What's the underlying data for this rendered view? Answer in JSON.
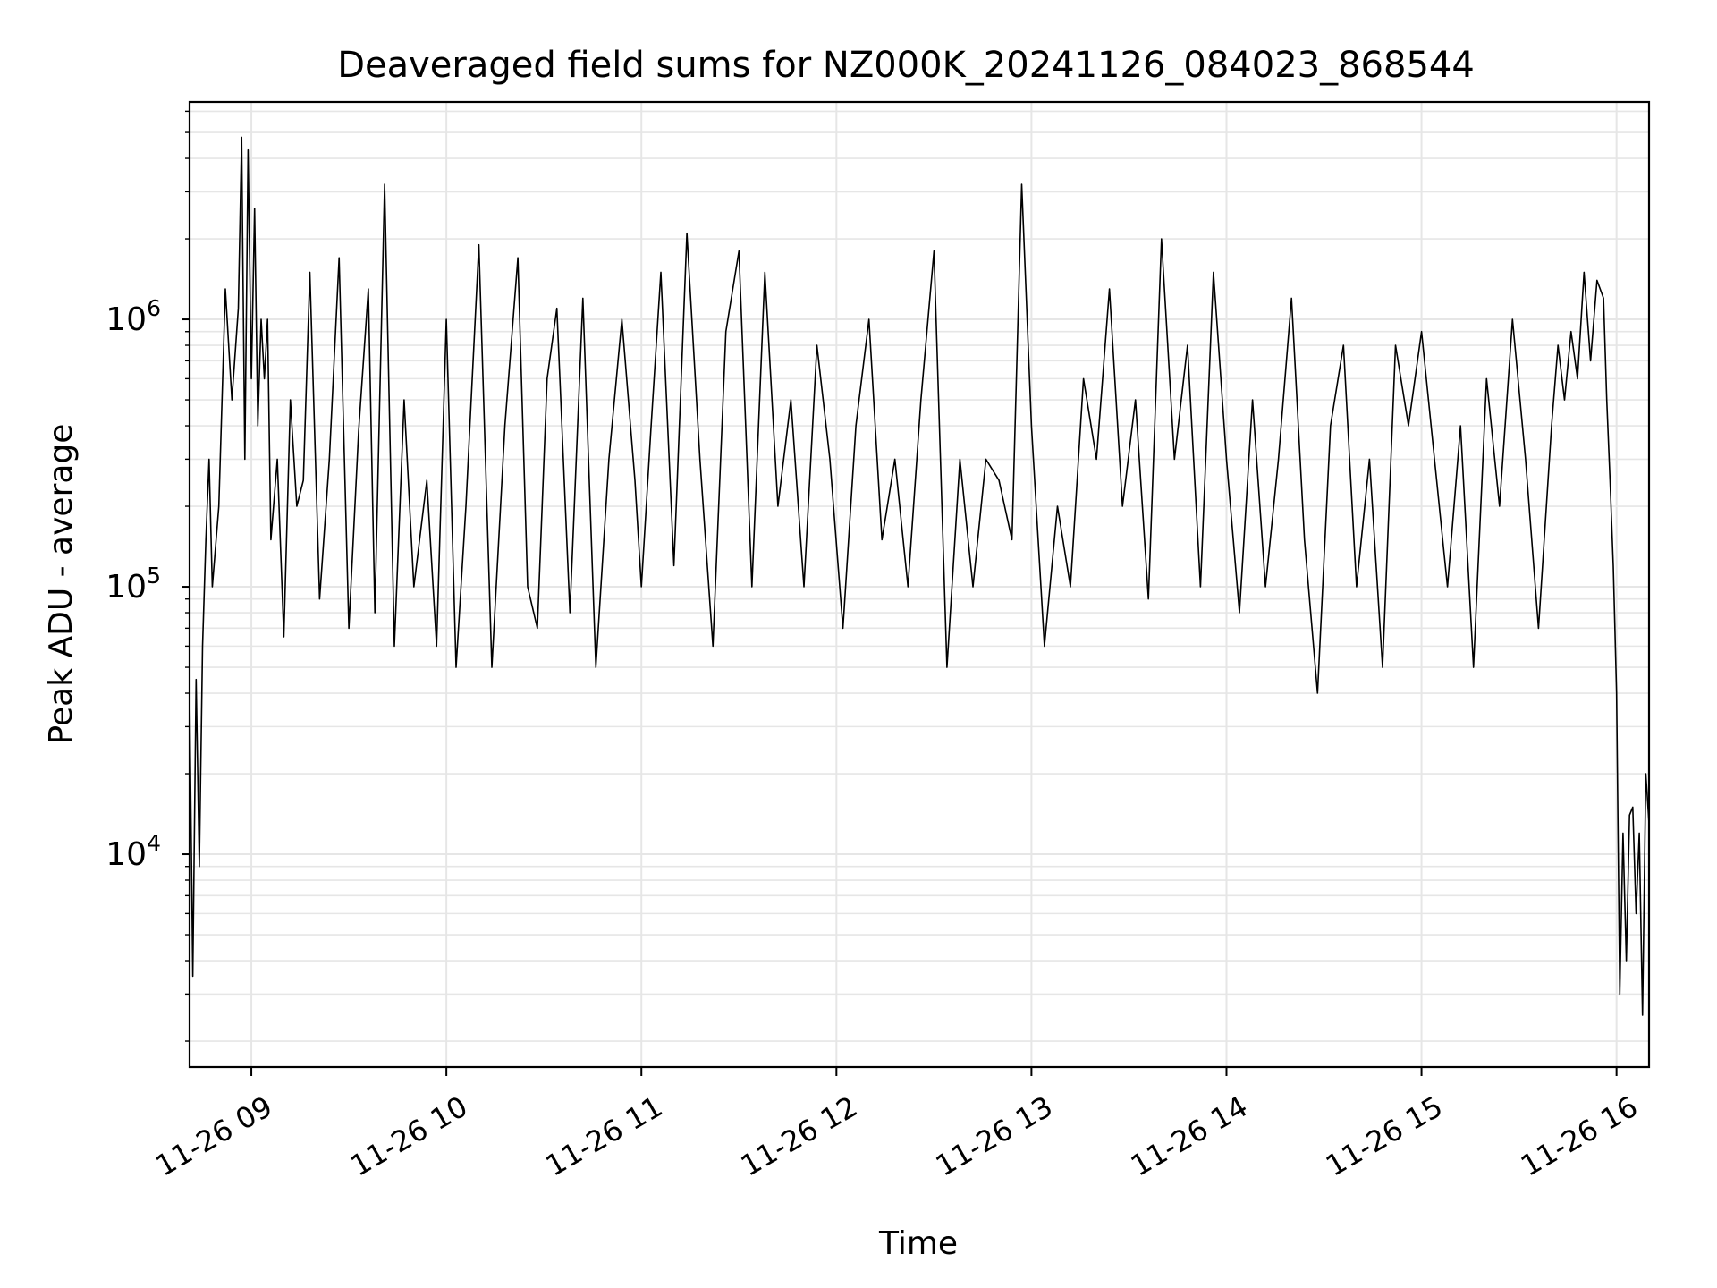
{
  "chart_data": {
    "type": "line",
    "title": "Deaveraged field sums for NZ000K_20241126_084023_868544",
    "xlabel": "Time",
    "ylabel": "Peak ADU - average",
    "yscale": "log",
    "grid": true,
    "legend": "none",
    "line_color": "#000000",
    "grid_color": "#e6e6e6",
    "xlim": [
      "2024-11-26 08:41",
      "2024-11-26 16:10"
    ],
    "ylim": [
      1600,
      6500000
    ],
    "x_ticks": [
      {
        "value": "2024-11-26 09:00",
        "label": "11-26 09"
      },
      {
        "value": "2024-11-26 10:00",
        "label": "11-26 10"
      },
      {
        "value": "2024-11-26 11:00",
        "label": "11-26 11"
      },
      {
        "value": "2024-11-26 12:00",
        "label": "11-26 12"
      },
      {
        "value": "2024-11-26 13:00",
        "label": "11-26 13"
      },
      {
        "value": "2024-11-26 14:00",
        "label": "11-26 14"
      },
      {
        "value": "2024-11-26 15:00",
        "label": "11-26 15"
      },
      {
        "value": "2024-11-26 16:00",
        "label": "11-26 16"
      }
    ],
    "y_ticks": [
      {
        "value": 10000,
        "base": "10",
        "exp": "4"
      },
      {
        "value": 100000,
        "base": "10",
        "exp": "5"
      },
      {
        "value": 1000000,
        "base": "10",
        "exp": "6"
      }
    ],
    "series": [
      {
        "x": [
          "2024-11-26 08:41",
          "2024-11-26 08:42",
          "2024-11-26 08:43",
          "2024-11-26 08:44",
          "2024-11-26 08:45",
          "2024-11-26 08:46",
          "2024-11-26 08:47",
          "2024-11-26 08:48",
          "2024-11-26 08:50",
          "2024-11-26 08:52",
          "2024-11-26 08:54",
          "2024-11-26 08:56",
          "2024-11-26 08:57",
          "2024-11-26 08:58",
          "2024-11-26 08:59",
          "2024-11-26 09:00",
          "2024-11-26 09:01",
          "2024-11-26 09:02",
          "2024-11-26 09:03",
          "2024-11-26 09:04",
          "2024-11-26 09:05",
          "2024-11-26 09:06",
          "2024-11-26 09:08",
          "2024-11-26 09:10",
          "2024-11-26 09:12",
          "2024-11-26 09:14",
          "2024-11-26 09:16",
          "2024-11-26 09:18",
          "2024-11-26 09:21",
          "2024-11-26 09:24",
          "2024-11-26 09:27",
          "2024-11-26 09:30",
          "2024-11-26 09:33",
          "2024-11-26 09:36",
          "2024-11-26 09:38",
          "2024-11-26 09:41",
          "2024-11-26 09:44",
          "2024-11-26 09:47",
          "2024-11-26 09:50",
          "2024-11-26 09:54",
          "2024-11-26 09:57",
          "2024-11-26 10:00",
          "2024-11-26 10:03",
          "2024-11-26 10:06",
          "2024-11-26 10:10",
          "2024-11-26 10:14",
          "2024-11-26 10:18",
          "2024-11-26 10:22",
          "2024-11-26 10:25",
          "2024-11-26 10:28",
          "2024-11-26 10:31",
          "2024-11-26 10:34",
          "2024-11-26 10:38",
          "2024-11-26 10:42",
          "2024-11-26 10:46",
          "2024-11-26 10:50",
          "2024-11-26 10:54",
          "2024-11-26 10:58",
          "2024-11-26 11:00",
          "2024-11-26 11:03",
          "2024-11-26 11:06",
          "2024-11-26 11:10",
          "2024-11-26 11:14",
          "2024-11-26 11:18",
          "2024-11-26 11:22",
          "2024-11-26 11:26",
          "2024-11-26 11:30",
          "2024-11-26 11:34",
          "2024-11-26 11:38",
          "2024-11-26 11:42",
          "2024-11-26 11:46",
          "2024-11-26 11:50",
          "2024-11-26 11:54",
          "2024-11-26 11:58",
          "2024-11-26 12:02",
          "2024-11-26 12:06",
          "2024-11-26 12:10",
          "2024-11-26 12:14",
          "2024-11-26 12:18",
          "2024-11-26 12:22",
          "2024-11-26 12:26",
          "2024-11-26 12:30",
          "2024-11-26 12:34",
          "2024-11-26 12:38",
          "2024-11-26 12:42",
          "2024-11-26 12:46",
          "2024-11-26 12:50",
          "2024-11-26 12:54",
          "2024-11-26 12:57",
          "2024-11-26 13:00",
          "2024-11-26 13:04",
          "2024-11-26 13:08",
          "2024-11-26 13:12",
          "2024-11-26 13:16",
          "2024-11-26 13:20",
          "2024-11-26 13:24",
          "2024-11-26 13:28",
          "2024-11-26 13:32",
          "2024-11-26 13:36",
          "2024-11-26 13:40",
          "2024-11-26 13:44",
          "2024-11-26 13:48",
          "2024-11-26 13:52",
          "2024-11-26 13:56",
          "2024-11-26 14:00",
          "2024-11-26 14:04",
          "2024-11-26 14:08",
          "2024-11-26 14:12",
          "2024-11-26 14:16",
          "2024-11-26 14:20",
          "2024-11-26 14:24",
          "2024-11-26 14:28",
          "2024-11-26 14:32",
          "2024-11-26 14:36",
          "2024-11-26 14:40",
          "2024-11-26 14:44",
          "2024-11-26 14:48",
          "2024-11-26 14:52",
          "2024-11-26 14:56",
          "2024-11-26 15:00",
          "2024-11-26 15:04",
          "2024-11-26 15:08",
          "2024-11-26 15:12",
          "2024-11-26 15:16",
          "2024-11-26 15:20",
          "2024-11-26 15:24",
          "2024-11-26 15:28",
          "2024-11-26 15:32",
          "2024-11-26 15:36",
          "2024-11-26 15:40",
          "2024-11-26 15:42",
          "2024-11-26 15:44",
          "2024-11-26 15:46",
          "2024-11-26 15:48",
          "2024-11-26 15:50",
          "2024-11-26 15:52",
          "2024-11-26 15:54",
          "2024-11-26 15:56",
          "2024-11-26 15:57",
          "2024-11-26 15:58",
          "2024-11-26 15:59",
          "2024-11-26 16:00",
          "2024-11-26 16:01",
          "2024-11-26 16:02",
          "2024-11-26 16:03",
          "2024-11-26 16:04",
          "2024-11-26 16:05",
          "2024-11-26 16:06",
          "2024-11-26 16:07",
          "2024-11-26 16:08",
          "2024-11-26 16:09",
          "2024-11-26 16:10"
        ],
        "y": [
          40000,
          3500,
          45000,
          9000,
          60000,
          150000,
          300000,
          100000,
          200000,
          1300000,
          500000,
          1100000,
          4800000,
          300000,
          4300000,
          600000,
          2600000,
          400000,
          1000000,
          600000,
          1000000,
          150000,
          300000,
          65000,
          500000,
          200000,
          250000,
          1500000,
          90000,
          300000,
          1700000,
          70000,
          380000,
          1300000,
          80000,
          3200000,
          60000,
          500000,
          100000,
          250000,
          60000,
          1000000,
          50000,
          200000,
          1900000,
          50000,
          400000,
          1700000,
          100000,
          70000,
          600000,
          1100000,
          80000,
          1200000,
          50000,
          300000,
          1000000,
          250000,
          100000,
          400000,
          1500000,
          120000,
          2100000,
          300000,
          60000,
          900000,
          1800000,
          100000,
          1500000,
          200000,
          500000,
          100000,
          800000,
          300000,
          70000,
          400000,
          1000000,
          150000,
          300000,
          100000,
          500000,
          1800000,
          50000,
          300000,
          100000,
          300000,
          250000,
          150000,
          3200000,
          400000,
          60000,
          200000,
          100000,
          600000,
          300000,
          1300000,
          200000,
          500000,
          90000,
          2000000,
          300000,
          800000,
          100000,
          1500000,
          300000,
          80000,
          500000,
          100000,
          300000,
          1200000,
          150000,
          40000,
          400000,
          800000,
          100000,
          300000,
          50000,
          800000,
          400000,
          900000,
          300000,
          100000,
          400000,
          50000,
          600000,
          200000,
          1000000,
          300000,
          70000,
          400000,
          800000,
          500000,
          900000,
          600000,
          1500000,
          700000,
          1400000,
          1200000,
          500000,
          250000,
          120000,
          40000,
          3000,
          12000,
          4000,
          14000,
          15000,
          6000,
          12000,
          2500,
          20000,
          13000
        ]
      }
    ]
  }
}
